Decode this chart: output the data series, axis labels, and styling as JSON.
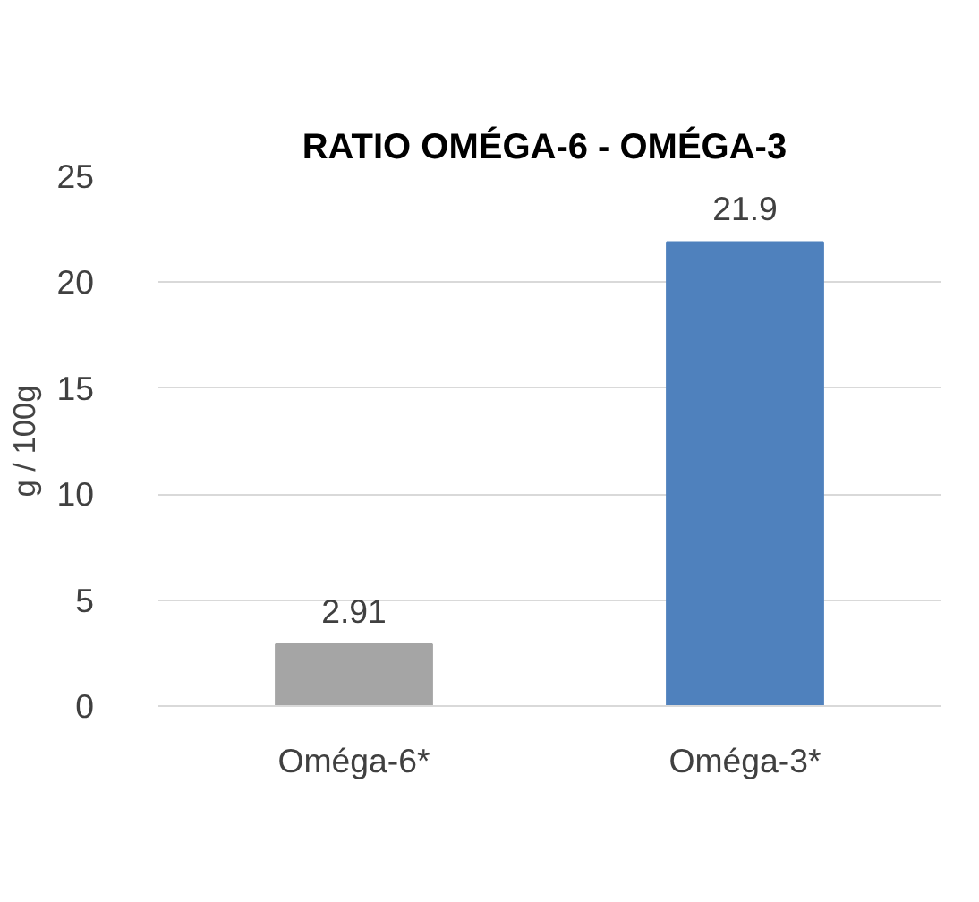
{
  "chart_data": {
    "type": "bar",
    "title": "RATIO OMÉGA-6  - OMÉGA-3",
    "ylabel": "g / 100g",
    "categories": [
      "Oméga-6*",
      "Oméga-3*"
    ],
    "values": [
      2.91,
      21.9
    ],
    "colors": [
      "#a5a5a5",
      "#4f81bd"
    ],
    "ylim": [
      0,
      25
    ],
    "yticks": [
      0,
      5,
      10,
      15,
      20,
      25
    ],
    "grid": "y",
    "data_labels": true
  }
}
